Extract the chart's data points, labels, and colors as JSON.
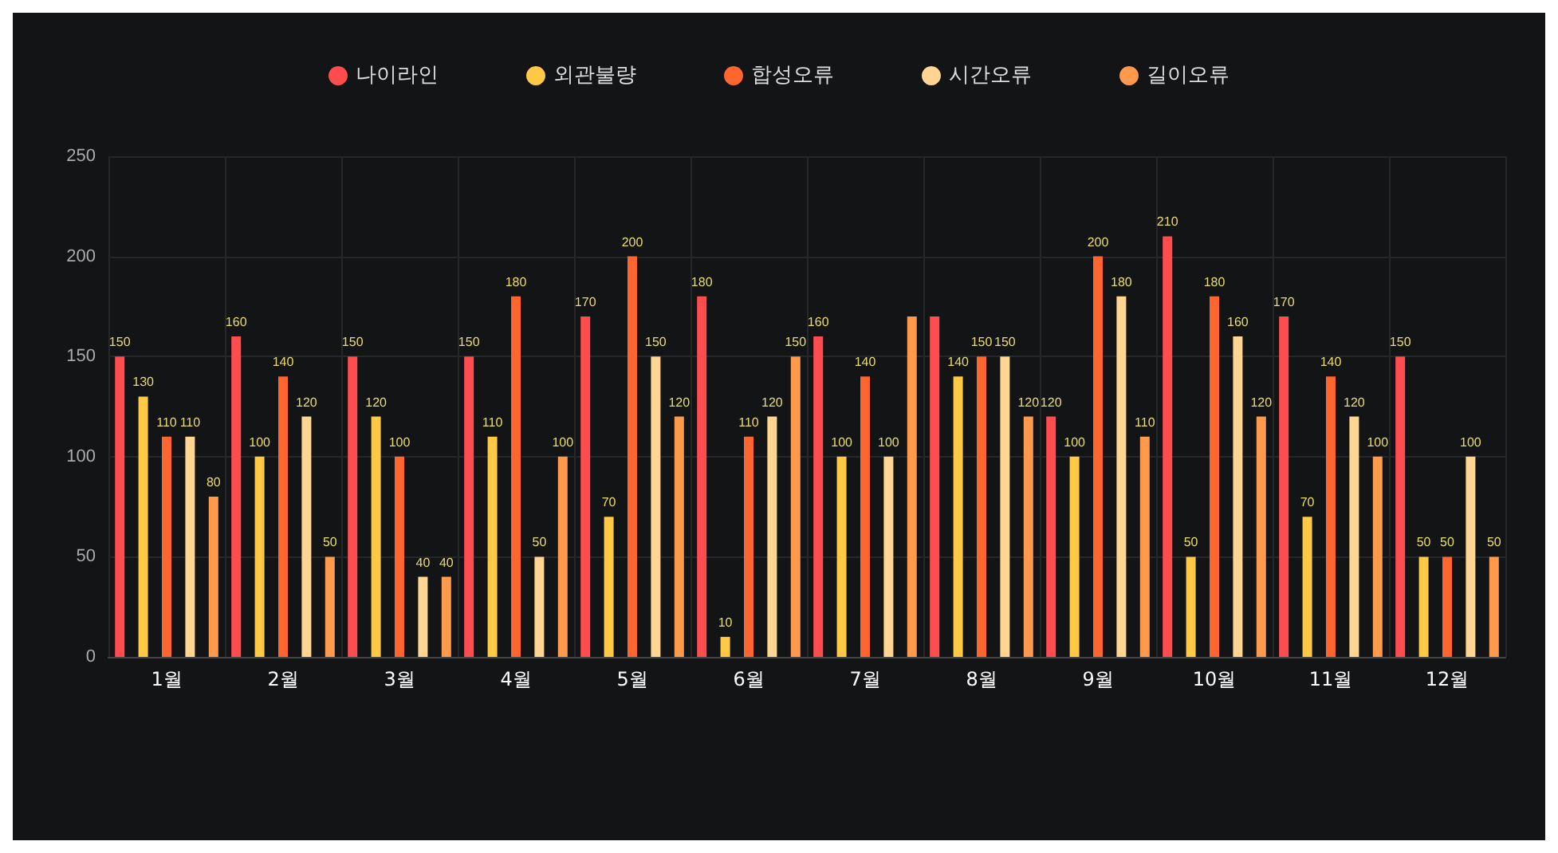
{
  "chart_data": {
    "type": "bar",
    "categories": [
      "1월",
      "2월",
      "3월",
      "4월",
      "5월",
      "6월",
      "7월",
      "8월",
      "9월",
      "10월",
      "11월",
      "12월"
    ],
    "series": [
      {
        "name": "나이라인",
        "color": "#ff4d4f",
        "values": [
          150,
          160,
          150,
          150,
          170,
          180,
          160,
          170,
          120,
          210,
          170,
          150
        ],
        "value_labels": [
          "150",
          "160",
          "150",
          "150",
          "170",
          "180",
          "160",
          null,
          "120",
          "210",
          "170",
          "150"
        ]
      },
      {
        "name": "외관불량",
        "color": "#ffc845",
        "values": [
          130,
          100,
          120,
          110,
          70,
          10,
          100,
          140,
          100,
          50,
          70,
          50
        ],
        "value_labels": [
          "130",
          "100",
          "120",
          "110",
          "70",
          "10",
          "100",
          "140",
          "100",
          "50",
          "70",
          "50"
        ]
      },
      {
        "name": "합성오류",
        "color": "#ff652f",
        "values": [
          110,
          140,
          100,
          180,
          200,
          110,
          140,
          150,
          200,
          180,
          140,
          50
        ],
        "value_labels": [
          "110",
          "140",
          "100",
          "180",
          "200",
          "110",
          "140",
          "150",
          "200",
          "180",
          "140",
          "50"
        ]
      },
      {
        "name": "시간오류",
        "color": "#ffd591",
        "values": [
          110,
          120,
          40,
          50,
          150,
          120,
          100,
          150,
          180,
          160,
          120,
          100
        ],
        "value_labels": [
          "110",
          "120",
          "40",
          "50",
          "150",
          "120",
          "100",
          "150",
          "180",
          "160",
          "120",
          "100"
        ]
      },
      {
        "name": "길이오류",
        "color": "#ff9a4d",
        "values": [
          80,
          50,
          40,
          100,
          120,
          150,
          170,
          120,
          110,
          120,
          100,
          50
        ],
        "value_labels": [
          "80",
          "50",
          "40",
          "100",
          "120",
          "150",
          null,
          "120",
          "110",
          "120",
          "100",
          "50"
        ]
      }
    ],
    "ylim": [
      0,
      250
    ],
    "yticks": [
      0,
      50,
      100,
      150,
      200,
      250
    ],
    "grid": true,
    "legend": "top"
  }
}
